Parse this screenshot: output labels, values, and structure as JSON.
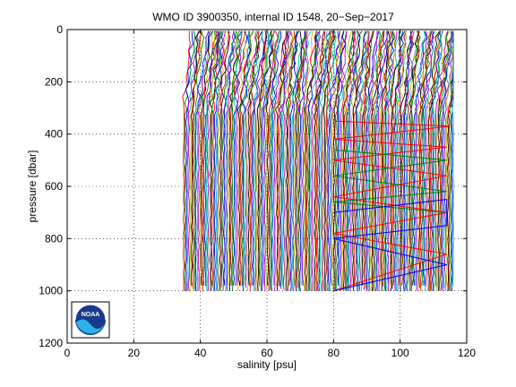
{
  "chart_data": {
    "type": "line",
    "title": "WMO ID 3900350, internal ID 1548, 20−Sep−2017",
    "xlabel": "salinity [psu]",
    "ylabel": "pressure [dbar]",
    "xlim": [
      0,
      120
    ],
    "ylim": [
      0,
      1200
    ],
    "y_reversed": true,
    "grid": true,
    "grid_style": "dotted",
    "xticks": [
      0,
      20,
      40,
      60,
      80,
      100,
      120
    ],
    "yticks": [
      0,
      200,
      400,
      600,
      800,
      1000,
      1200
    ],
    "xtick_labels": [
      "0",
      "20",
      "40",
      "60",
      "80",
      "100",
      "120"
    ],
    "ytick_labels": [
      "0",
      "200",
      "400",
      "600",
      "800",
      "1000",
      "1200"
    ],
    "series_colors": [
      "#ff0000",
      "#008000",
      "#0000ff",
      "#00bfbf",
      "#bf00bf",
      "#bfbf00",
      "#000000"
    ],
    "profile_count": 200,
    "profile_salinity_range": [
      35,
      116
    ],
    "profile_pressure_range": [
      5,
      1000
    ],
    "zigzag_segments": [
      {
        "color": "#ff0000",
        "points": [
          [
            80,
            350
          ],
          [
            115,
            370
          ],
          [
            80,
            420
          ],
          [
            114,
            450
          ],
          [
            80,
            500
          ],
          [
            114,
            560
          ],
          [
            80,
            640
          ],
          [
            114,
            700
          ],
          [
            80,
            780
          ],
          [
            114,
            860
          ],
          [
            80,
            1000
          ]
        ]
      },
      {
        "color": "#008000",
        "points": [
          [
            80,
            460
          ],
          [
            114,
            500
          ],
          [
            80,
            560
          ],
          [
            114,
            620
          ],
          [
            80,
            660
          ],
          [
            114,
            700
          ]
        ]
      },
      {
        "color": "#0000ff",
        "points": [
          [
            80,
            700
          ],
          [
            114,
            650
          ],
          [
            114,
            750
          ],
          [
            80,
            800
          ],
          [
            114,
            900
          ],
          [
            80,
            1000
          ]
        ]
      }
    ]
  },
  "logo": {
    "text": "NOAA",
    "name": "noaa-logo"
  }
}
